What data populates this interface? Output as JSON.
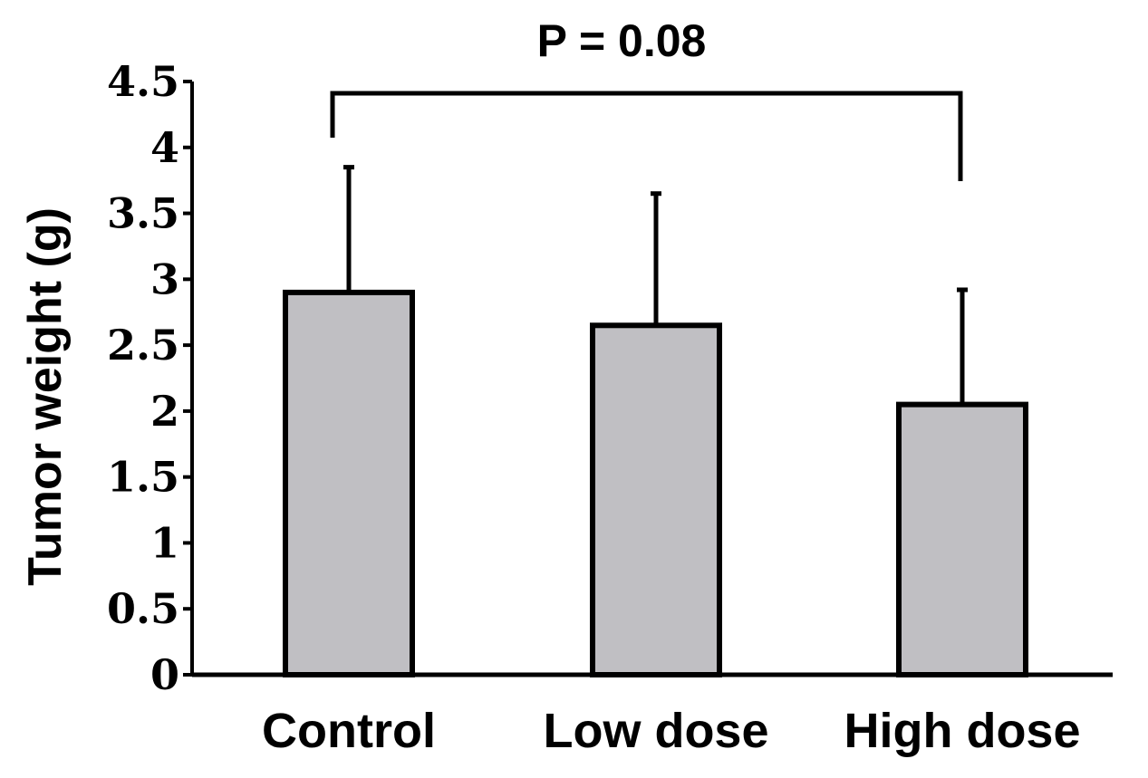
{
  "chart_data": {
    "type": "bar",
    "title": "",
    "xlabel": "",
    "ylabel": "Tumor weight (g)",
    "categories": [
      "Control",
      "Low dose",
      "High dose"
    ],
    "values": [
      2.9,
      2.65,
      2.05
    ],
    "error_upper": [
      0.95,
      1.0,
      0.87
    ],
    "ylim": [
      0,
      4.5
    ],
    "yticks": [
      0,
      0.5,
      1,
      1.5,
      2,
      2.5,
      3,
      3.5,
      4,
      4.5
    ],
    "ytick_labels": [
      "0",
      "0.5",
      "1",
      "1.5",
      "2",
      "2.5",
      "3",
      "3.5",
      "4",
      "4.5"
    ],
    "bar_color": "#c0bfc3",
    "annotation": {
      "text": "P = 0.08",
      "from": "Control",
      "to": "High dose"
    },
    "grid": false,
    "legend": "none"
  }
}
